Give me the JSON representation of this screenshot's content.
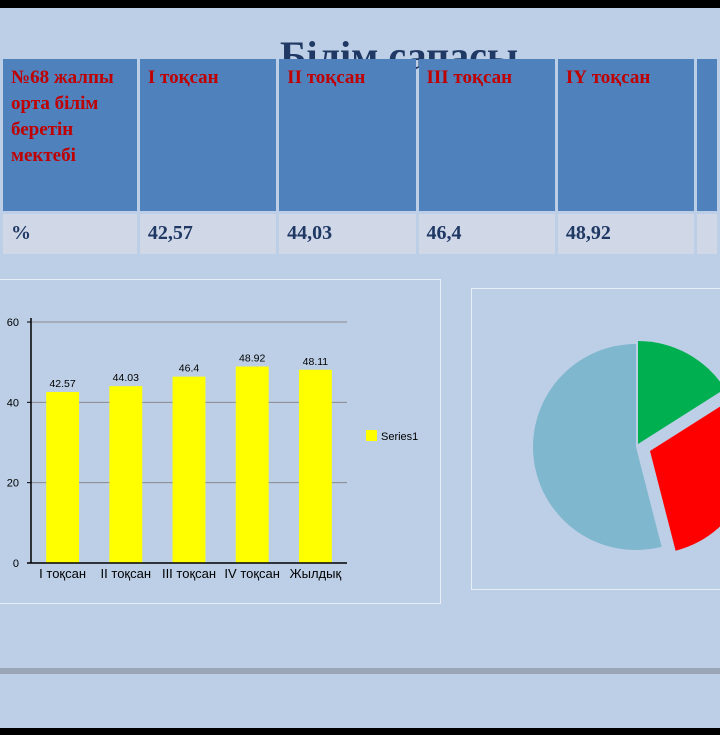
{
  "slide": {
    "title": "Білім сапасы"
  },
  "table": {
    "headers": [
      "№68 жалпы орта білім беретін мектебі",
      "І тоқсан",
      "ІІ тоқсан",
      "ІІІ тоқсан",
      "ІҮ тоқсан",
      ""
    ],
    "row": [
      "%",
      "42,57",
      "44,03",
      "46,4",
      "48,92",
      ""
    ]
  },
  "chart_data": [
    {
      "type": "bar",
      "categories": [
        "І тоқсан",
        "ІІ тоқсан",
        "ІІІ тоқсан",
        "ІV тоқсан",
        "Жылдық"
      ],
      "series": [
        {
          "name": "Series1",
          "values": [
            42.57,
            44.03,
            46.4,
            48.92,
            48.11
          ]
        }
      ],
      "data_labels": [
        "42.57",
        "44.03",
        "46.4",
        "48.92",
        "48.11"
      ],
      "yticks": [
        "0",
        "20",
        "40",
        "60"
      ],
      "ylim": [
        0,
        60
      ],
      "grid": true,
      "legend": "right",
      "colors": {
        "bar": "#ffff00",
        "grid": "#8a8a8a"
      }
    },
    {
      "type": "pie",
      "values": [
        16,
        30,
        54
      ],
      "colors": [
        "#00b050",
        "#ff0000",
        "#7fb7cf"
      ],
      "partially_visible": true
    }
  ]
}
